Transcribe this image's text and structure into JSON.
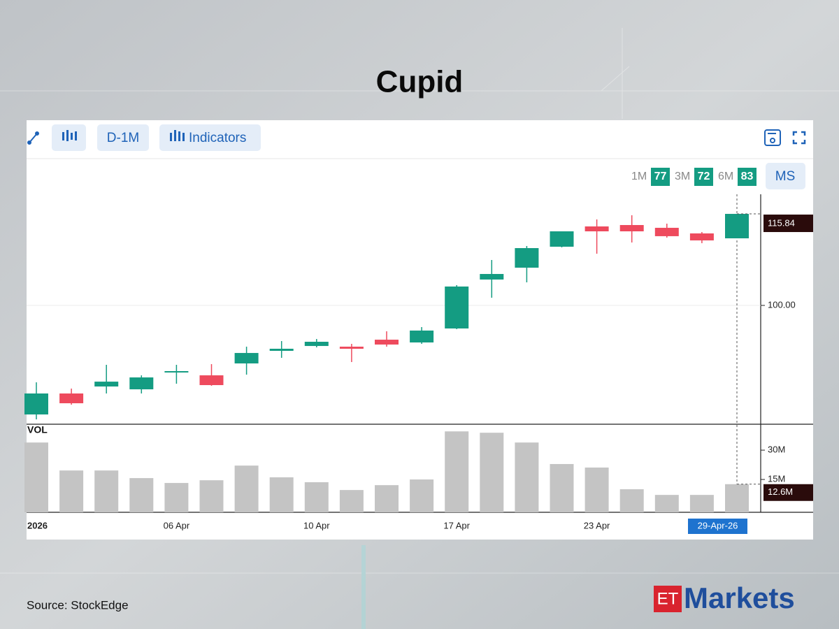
{
  "title": "Cupid",
  "toolbar": {
    "interval": "D-1M",
    "indicators": "Indicators"
  },
  "ratings": [
    {
      "label": "1M",
      "value": 77
    },
    {
      "label": "3M",
      "value": 72
    },
    {
      "label": "6M",
      "value": 83
    }
  ],
  "ms_button": "MS",
  "chart_data": [
    {
      "type": "candlestick",
      "categories": [
        "2026",
        null,
        null,
        null,
        "06 Apr",
        null,
        null,
        null,
        "10 Apr",
        null,
        null,
        null,
        "17 Apr",
        null,
        null,
        null,
        "23 Apr",
        null,
        null,
        null,
        "29-Apr-26"
      ],
      "open": [
        81.13,
        84.76,
        85.97,
        85.48,
        88.39,
        87.9,
        89.96,
        92.14,
        92.98,
        92.86,
        94.07,
        93.59,
        96.01,
        104.48,
        106.53,
        110.16,
        113.67,
        113.91,
        113.43,
        112.46,
        111.61
      ],
      "high": [
        86.69,
        85.61,
        89.72,
        87.9,
        89.72,
        89.84,
        92.86,
        93.83,
        94.19,
        93.35,
        95.52,
        96.25,
        103.51,
        107.86,
        110.28,
        112.82,
        114.88,
        115.6,
        114.15,
        112.7,
        115.84
      ],
      "low": [
        80.28,
        82.82,
        84.76,
        84.76,
        86.45,
        86.09,
        88.02,
        90.93,
        92.74,
        90.2,
        92.86,
        93.35,
        95.89,
        101.33,
        103.99,
        110.04,
        108.95,
        110.89,
        111.73,
        110.77,
        111.61
      ],
      "close": [
        84.76,
        83.07,
        86.81,
        87.54,
        88.63,
        86.21,
        91.77,
        92.5,
        93.71,
        92.5,
        93.23,
        95.65,
        103.27,
        105.44,
        109.92,
        112.82,
        112.82,
        112.82,
        111.98,
        111.25,
        115.84
      ],
      "up_color": "#149c82",
      "down_color": "#ee4a5d",
      "ylim": [
        79.44,
        119.23
      ],
      "yticks": [
        {
          "value": 100,
          "label": "100.00"
        }
      ],
      "grid": true
    },
    {
      "type": "bar",
      "title": "VOL",
      "values": [
        33.9,
        19.6,
        19.6,
        15.7,
        13.2,
        14.6,
        22.1,
        16.1,
        13.6,
        9.6,
        12.1,
        15.0,
        39.6,
        38.9,
        33.9,
        22.9,
        21.1,
        10.0,
        7.1,
        7.1,
        12.6
      ],
      "value_labels": [
        null,
        null,
        null,
        null,
        null,
        null,
        null,
        null,
        null,
        null,
        null,
        null,
        null,
        null,
        null,
        null,
        null,
        null,
        null,
        null,
        "12.6M"
      ],
      "color": "#c4c4c4",
      "ylim": [
        0,
        42.9
      ],
      "yticks": [
        {
          "value": 15,
          "label": "15M"
        },
        {
          "value": 30,
          "label": "30M"
        }
      ]
    }
  ],
  "source": "Source:  StockEdge",
  "logo": {
    "et": "ET",
    "markets": "Markets"
  }
}
